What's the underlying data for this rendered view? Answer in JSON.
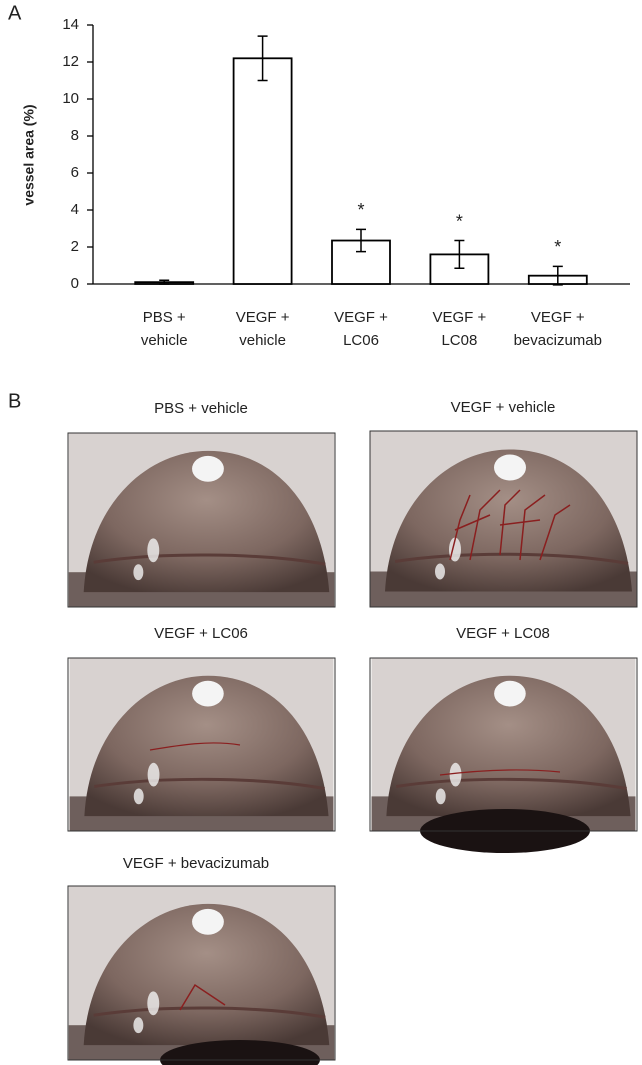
{
  "panel_labels": {
    "a": "A",
    "b": "B"
  },
  "chart_data": {
    "type": "bar",
    "ylabel": "vessel area (%)",
    "categories": [
      [
        "PBS +",
        "vehicle"
      ],
      [
        "VEGF +",
        "vehicle"
      ],
      [
        "VEGF +",
        "LC06"
      ],
      [
        "VEGF +",
        "LC08"
      ],
      [
        "VEGF +",
        "bevacizumab"
      ]
    ],
    "values": [
      0.1,
      12.2,
      2.35,
      1.6,
      0.45
    ],
    "errors": [
      0.1,
      1.2,
      0.6,
      0.75,
      0.5
    ],
    "annotations": [
      null,
      null,
      "*",
      "*",
      "*"
    ],
    "color": "#ffffff",
    "ylim": [
      0,
      14
    ],
    "yticks": [
      0,
      2,
      4,
      6,
      8,
      10,
      12,
      14
    ]
  },
  "photos": [
    {
      "caption": "PBS + vehicle"
    },
    {
      "caption": "VEGF + vehicle"
    },
    {
      "caption": "VEGF + LC06"
    },
    {
      "caption": "VEGF + LC08"
    },
    {
      "caption": "VEGF + bevacizumab"
    }
  ]
}
